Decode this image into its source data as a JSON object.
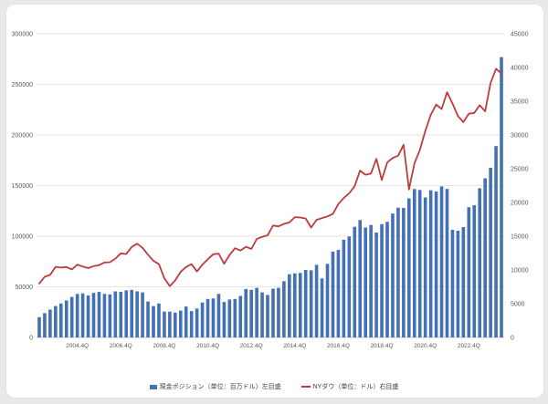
{
  "chart_data": {
    "type": "combo",
    "categories": [
      "2003.1Q",
      "2003.2Q",
      "2003.3Q",
      "2003.4Q",
      "2004.1Q",
      "2004.2Q",
      "2004.3Q",
      "2004.4Q",
      "2005.1Q",
      "2005.2Q",
      "2005.3Q",
      "2005.4Q",
      "2006.1Q",
      "2006.2Q",
      "2006.3Q",
      "2006.4Q",
      "2007.1Q",
      "2007.2Q",
      "2007.3Q",
      "2007.4Q",
      "2008.1Q",
      "2008.2Q",
      "2008.3Q",
      "2008.4Q",
      "2009.1Q",
      "2009.2Q",
      "2009.3Q",
      "2009.4Q",
      "2010.1Q",
      "2010.2Q",
      "2010.3Q",
      "2010.4Q",
      "2011.1Q",
      "2011.2Q",
      "2011.3Q",
      "2011.4Q",
      "2012.1Q",
      "2012.2Q",
      "2012.3Q",
      "2012.4Q",
      "2013.1Q",
      "2013.2Q",
      "2013.3Q",
      "2013.4Q",
      "2014.1Q",
      "2014.2Q",
      "2014.3Q",
      "2014.4Q",
      "2015.1Q",
      "2015.2Q",
      "2015.3Q",
      "2015.4Q",
      "2016.1Q",
      "2016.2Q",
      "2016.3Q",
      "2016.4Q",
      "2017.1Q",
      "2017.2Q",
      "2017.3Q",
      "2017.4Q",
      "2018.1Q",
      "2018.2Q",
      "2018.3Q",
      "2018.4Q",
      "2019.1Q",
      "2019.2Q",
      "2019.3Q",
      "2019.4Q",
      "2020.1Q",
      "2020.2Q",
      "2020.3Q",
      "2020.4Q",
      "2021.1Q",
      "2021.2Q",
      "2021.3Q",
      "2021.4Q",
      "2022.1Q",
      "2022.2Q",
      "2022.3Q",
      "2022.4Q",
      "2023.1Q",
      "2023.2Q",
      "2023.3Q",
      "2023.4Q",
      "2024.1Q",
      "2024.2Q"
    ],
    "series": [
      {
        "name": "現金ポジション（単位：百万ドル）左目盛",
        "type": "bar",
        "axis": "left",
        "color": "#4470b4",
        "values": [
          20000,
          24000,
          27500,
          31000,
          33500,
          36500,
          40000,
          43000,
          43500,
          41500,
          44000,
          45000,
          43000,
          42500,
          45500,
          45000,
          46500,
          47000,
          45500,
          44500,
          35500,
          31000,
          33500,
          25500,
          25500,
          24500,
          26500,
          30500,
          26000,
          28500,
          34500,
          38000,
          38500,
          43000,
          35000,
          37500,
          38000,
          41000,
          47800,
          47000,
          49000,
          44500,
          42000,
          48200,
          49000,
          55500,
          62400,
          63300,
          63700,
          66600,
          66300,
          71700,
          58300,
          72700,
          84800,
          86400,
          96500,
          99700,
          109300,
          116000,
          108600,
          111100,
          103600,
          111900,
          114200,
          122400,
          128200,
          128000,
          137300,
          146600,
          145700,
          138300,
          145400,
          144100,
          149200,
          146700,
          106300,
          105400,
          109000,
          128600,
          130600,
          147400,
          157200,
          167600,
          189000,
          276900
        ]
      },
      {
        "name": "NYダウ（単位：ドル）右目盛",
        "type": "line",
        "axis": "right",
        "color": "#bc3c3e",
        "values": [
          7992,
          8985,
          9275,
          10454,
          10357,
          10435,
          10080,
          10783,
          10504,
          10275,
          10569,
          10718,
          11109,
          11150,
          11679,
          12463,
          12354,
          13409,
          13896,
          13265,
          12263,
          11350,
          10851,
          8776,
          7609,
          8447,
          9712,
          10428,
          10857,
          9774,
          10788,
          11578,
          12320,
          12414,
          10913,
          12218,
          13212,
          12880,
          13437,
          13104,
          14579,
          14910,
          15130,
          16577,
          16458,
          16827,
          17043,
          17823,
          17776,
          17620,
          16285,
          17425,
          17685,
          17930,
          18308,
          19763,
          20663,
          21350,
          22405,
          24719,
          24103,
          24271,
          26458,
          23327,
          25929,
          26600,
          26917,
          28538,
          21917,
          25813,
          27782,
          30606,
          32982,
          34503,
          33844,
          36338,
          34678,
          32800,
          31900,
          33147,
          33274,
          34408,
          33508,
          37690,
          39807,
          39119
        ]
      }
    ],
    "x_tick_indices": [
      7,
      15,
      23,
      31,
      39,
      47,
      55,
      63,
      71,
      79
    ],
    "x_tick_labels": [
      "2004.4Q",
      "2006.4Q",
      "2008.4Q",
      "2010.4Q",
      "2012.4Q",
      "2014.4Q",
      "2016.4Q",
      "2018.4Q",
      "2020.4Q",
      "2022.4Q"
    ],
    "left_axis": {
      "min": 0,
      "max": 300000,
      "step": 50000,
      "tick_labels": [
        "0",
        "50000",
        "100000",
        "150000",
        "200000",
        "250000",
        "300000"
      ]
    },
    "right_axis": {
      "min": 0,
      "max": 45000,
      "step": 5000,
      "tick_labels": [
        "0",
        "5000",
        "10000",
        "15000",
        "20000",
        "25000",
        "30000",
        "35000",
        "40000",
        "45000"
      ]
    },
    "title": "",
    "xlabel": "",
    "ylabel_left": "",
    "ylabel_right": "",
    "grid": "horizontal",
    "legend_position": "bottom"
  },
  "colors": {
    "bar": "#4470b4",
    "line": "#bc3c3e",
    "gridline": "#dcdcdc",
    "zero_line": "#c4c4c4",
    "tick_text": "#595959",
    "legend_text": "#3f3f3f",
    "card_background": "#ffffff",
    "page_background": "#e9e9e9"
  }
}
